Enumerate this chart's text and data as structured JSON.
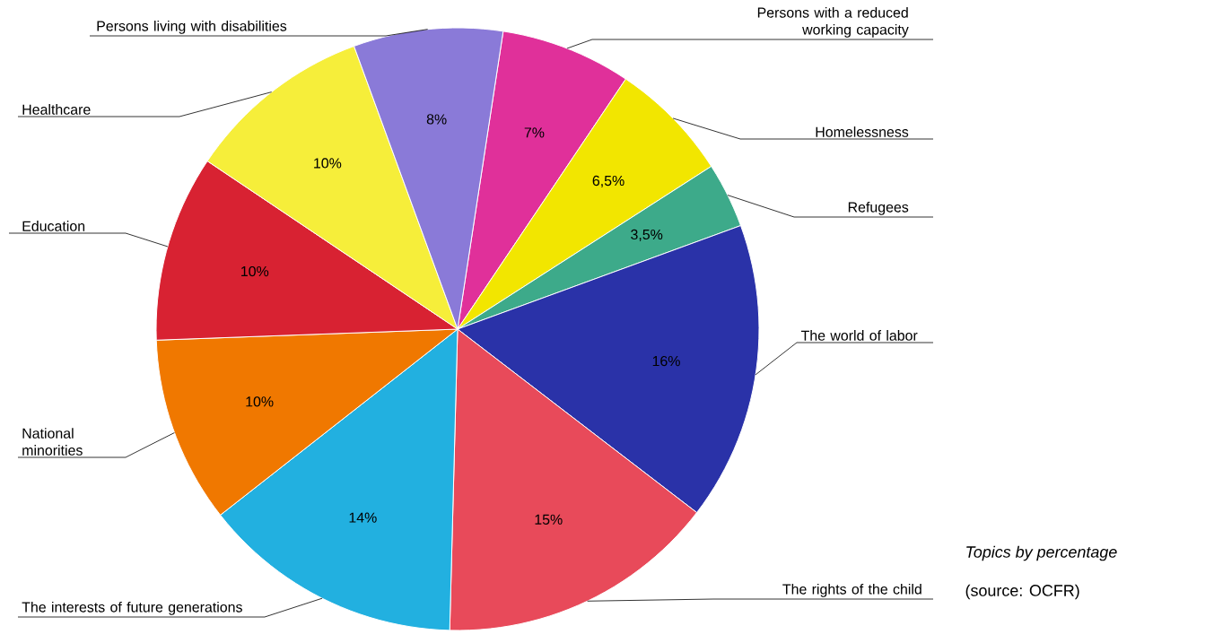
{
  "chart_data": {
    "type": "pie",
    "title": "Topics by percentage",
    "annotations": [
      "(source: OCFR)"
    ],
    "categories": [
      "Persons with a reduced working capacity",
      "Homelessness",
      "Refugees",
      "The world of labor",
      "The rights of the child",
      "The interests of future generations",
      "National minorities",
      "Education",
      "Healthcare",
      "Persons living with disabilities"
    ],
    "values": [
      7,
      6.5,
      3.5,
      16,
      15,
      14,
      10,
      10,
      10,
      8
    ],
    "value_labels": [
      "7%",
      "6,5%",
      "3,5%",
      "16%",
      "15%",
      "14%",
      "10%",
      "10%",
      "10%",
      "8%"
    ],
    "colors": [
      "#e0309a",
      "#f2e600",
      "#3daa8a",
      "#2a32a8",
      "#e84a5a",
      "#22b0e0",
      "#f07800",
      "#d82232",
      "#f6ee3a",
      "#8a7ad8"
    ]
  }
}
